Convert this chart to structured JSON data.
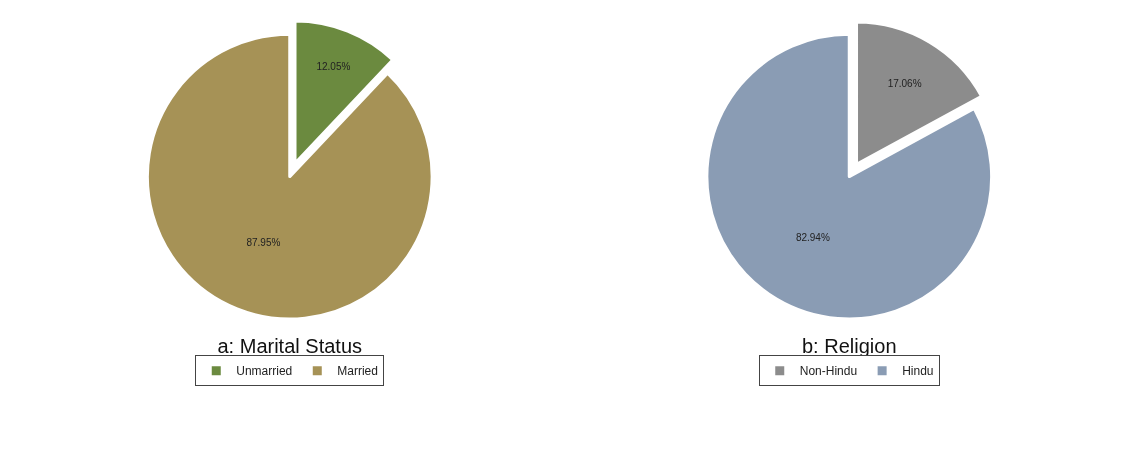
{
  "chart_data": [
    {
      "type": "pie",
      "title": "a: Marital Status",
      "categories": [
        "Unmarried",
        "Married"
      ],
      "values": [
        12.05,
        87.95
      ],
      "value_labels": [
        "12.05%",
        "87.95%"
      ],
      "colors": [
        "#6b8a3f",
        "#a69256"
      ],
      "legend": "bottom"
    },
    {
      "type": "pie",
      "title": "b: Religion",
      "categories": [
        "Non-Hindu",
        "Hindu"
      ],
      "values": [
        17.06,
        82.94
      ],
      "value_labels": [
        "17.06%",
        "82.94%"
      ],
      "colors": [
        "#8c8c8c",
        "#8a9cb4"
      ],
      "legend": "bottom"
    }
  ]
}
